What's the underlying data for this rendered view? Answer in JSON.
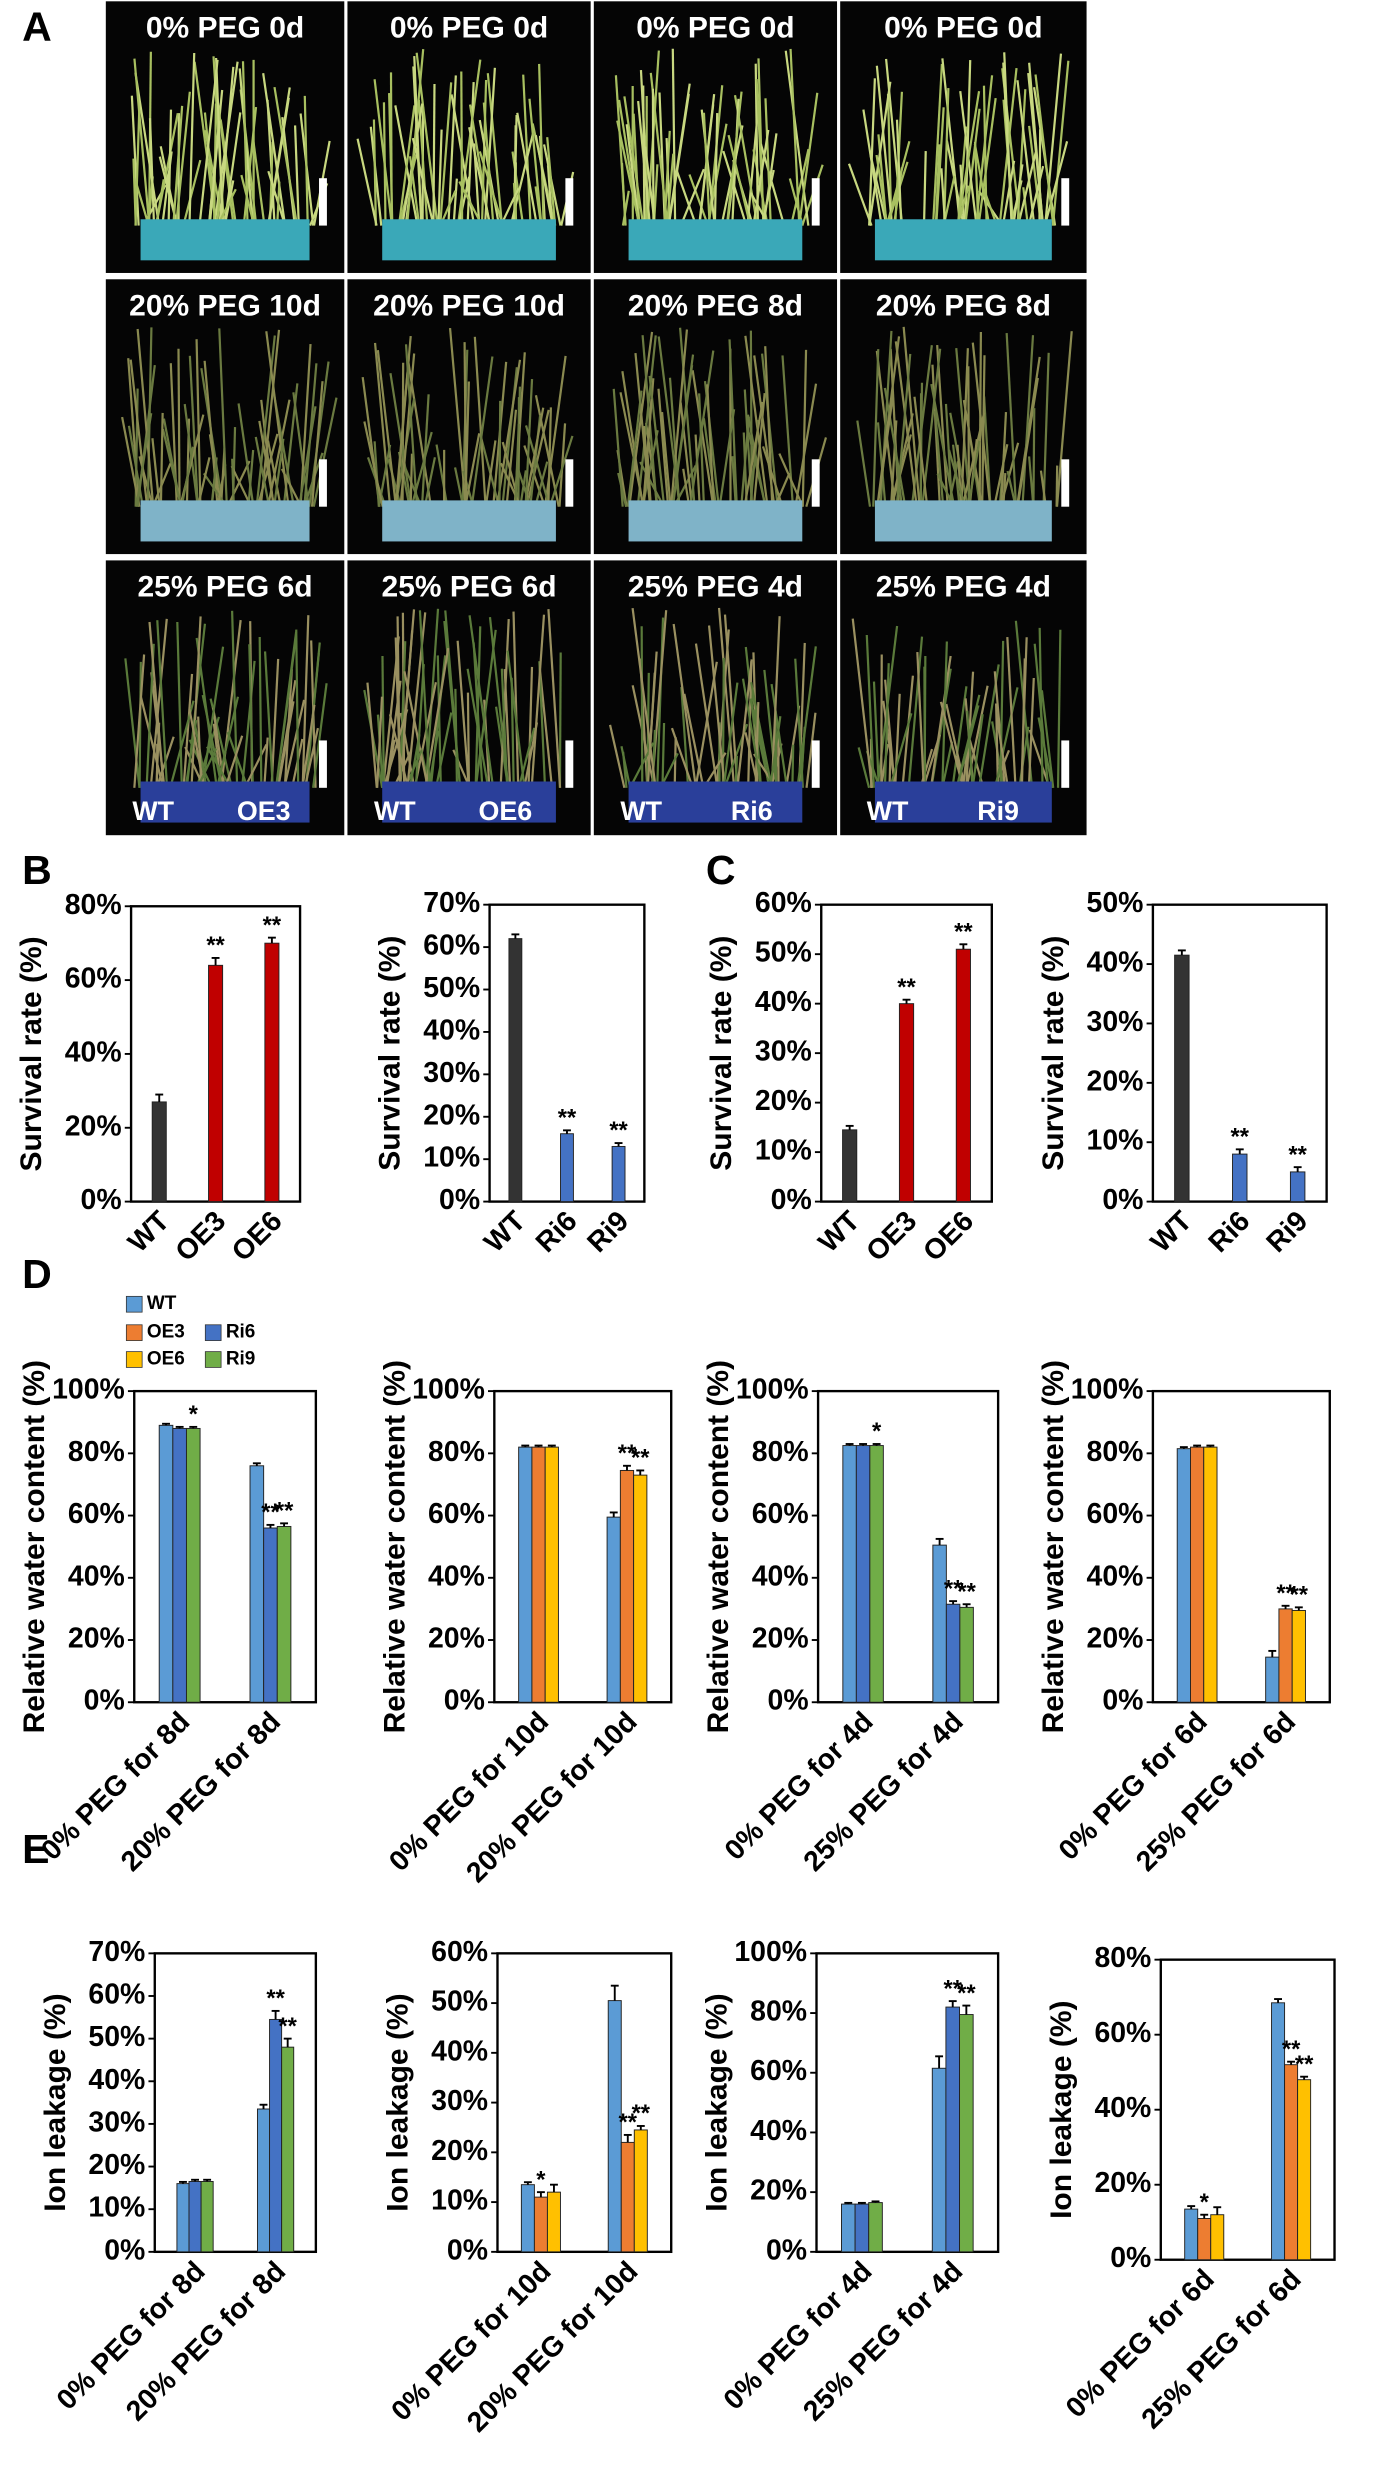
{
  "panel_labels": [
    "A",
    "B",
    "C",
    "D",
    "E"
  ],
  "photos": {
    "tiles": [
      "0% PEG 0d",
      "0% PEG 0d",
      "0% PEG 0d",
      "0% PEG 0d",
      "20% PEG 10d",
      "20% PEG 10d",
      "20% PEG 8d",
      "20% PEG 8d",
      "25% PEG 6d",
      "25% PEG 6d",
      "25% PEG 4d",
      "25% PEG 4d"
    ],
    "genotypes": [
      [
        "WT",
        "OE3"
      ],
      [
        "WT",
        "OE6"
      ],
      [
        "WT",
        "Ri6"
      ],
      [
        "WT",
        "Ri9"
      ]
    ]
  },
  "legend": {
    "items": [
      {
        "name": "WT",
        "color": "#5b9bd5"
      },
      {
        "name": "OE3",
        "color": "#ed7d31"
      },
      {
        "name": "Ri6",
        "color": "#4472c4"
      },
      {
        "name": "OE6",
        "color": "#ffc000"
      },
      {
        "name": "Ri9",
        "color": "#70ad47"
      }
    ]
  },
  "chart_data": [
    {
      "type": "bar",
      "ylabel": "Survival rate (%)",
      "categories": [
        "WT",
        "OE3",
        "OE6"
      ],
      "values": [
        27,
        64,
        70
      ],
      "errors": [
        2,
        2,
        1.5
      ],
      "colors": [
        "#333333",
        "#c00000",
        "#c00000"
      ],
      "value_annotations": [
        null,
        "**",
        "**"
      ],
      "ylim": [
        0,
        80
      ],
      "yticks": [
        {
          "value": 0,
          "label": "0%"
        },
        {
          "value": 20,
          "label": "20%"
        },
        {
          "value": 40,
          "label": "40%"
        },
        {
          "value": 60,
          "label": "60%"
        },
        {
          "value": 80,
          "label": "80%"
        }
      ]
    },
    {
      "type": "bar",
      "ylabel": "Survival rate (%)",
      "categories": [
        "WT",
        "Ri6",
        "Ri9"
      ],
      "values": [
        62,
        16,
        13
      ],
      "errors": [
        1,
        0.8,
        0.8
      ],
      "colors": [
        "#333333",
        "#4472c4",
        "#4472c4"
      ],
      "value_annotations": [
        null,
        "**",
        "**"
      ],
      "ylim": [
        0,
        70
      ],
      "yticks": [
        {
          "value": 0,
          "label": "0%"
        },
        {
          "value": 10,
          "label": "10%"
        },
        {
          "value": 20,
          "label": "20%"
        },
        {
          "value": 30,
          "label": "30%"
        },
        {
          "value": 40,
          "label": "40%"
        },
        {
          "value": 50,
          "label": "50%"
        },
        {
          "value": 60,
          "label": "60%"
        },
        {
          "value": 70,
          "label": "70%"
        }
      ]
    },
    {
      "type": "bar",
      "ylabel": "Survival rate (%)",
      "categories": [
        "WT",
        "OE3",
        "OE6"
      ],
      "values": [
        14.5,
        40,
        51
      ],
      "errors": [
        0.8,
        0.8,
        1
      ],
      "colors": [
        "#333333",
        "#c00000",
        "#c00000"
      ],
      "value_annotations": [
        null,
        "**",
        "**"
      ],
      "ylim": [
        0,
        60
      ],
      "yticks": [
        {
          "value": 0,
          "label": "0%"
        },
        {
          "value": 10,
          "label": "10%"
        },
        {
          "value": 20,
          "label": "20%"
        },
        {
          "value": 30,
          "label": "30%"
        },
        {
          "value": 40,
          "label": "40%"
        },
        {
          "value": 50,
          "label": "50%"
        },
        {
          "value": 60,
          "label": "60%"
        }
      ]
    },
    {
      "type": "bar",
      "ylabel": "Survival rate (%)",
      "categories": [
        "WT",
        "Ri6",
        "Ri9"
      ],
      "values": [
        41.5,
        8,
        5
      ],
      "errors": [
        0.8,
        0.8,
        0.8
      ],
      "colors": [
        "#333333",
        "#4472c4",
        "#4472c4"
      ],
      "value_annotations": [
        null,
        "**",
        "**"
      ],
      "ylim": [
        0,
        50
      ],
      "yticks": [
        {
          "value": 0,
          "label": "0%"
        },
        {
          "value": 10,
          "label": "10%"
        },
        {
          "value": 20,
          "label": "20%"
        },
        {
          "value": 30,
          "label": "30%"
        },
        {
          "value": 40,
          "label": "40%"
        },
        {
          "value": 50,
          "label": "50%"
        }
      ]
    },
    {
      "type": "bar",
      "ylabel": "Relative water content (%)",
      "categories": [
        "0% PEG for 8d",
        "20% PEG for 8d"
      ],
      "series": [
        {
          "name": "WT",
          "color": "#5b9bd5",
          "values": [
            89,
            76
          ],
          "errors": [
            0.5,
            0.8
          ],
          "value_annotations": [
            null,
            null
          ]
        },
        {
          "name": "Ri6",
          "color": "#4472c4",
          "values": [
            88,
            56
          ],
          "errors": [
            0.5,
            1
          ],
          "value_annotations": [
            null,
            "**"
          ]
        },
        {
          "name": "Ri9",
          "color": "#70ad47",
          "values": [
            88,
            56.5
          ],
          "errors": [
            0.5,
            1
          ],
          "value_annotations": [
            "*",
            "**"
          ]
        }
      ],
      "ylim": [
        0,
        100
      ],
      "yticks": [
        {
          "value": 0,
          "label": "0%"
        },
        {
          "value": 20,
          "label": "20%"
        },
        {
          "value": 40,
          "label": "40%"
        },
        {
          "value": 60,
          "label": "60%"
        },
        {
          "value": 80,
          "label": "80%"
        },
        {
          "value": 100,
          "label": "100%"
        }
      ]
    },
    {
      "type": "bar",
      "ylabel": "Relative water content (%)",
      "categories": [
        "0% PEG for 10d",
        "20% PEG for 10d"
      ],
      "series": [
        {
          "name": "WT",
          "color": "#5b9bd5",
          "values": [
            82,
            59.5
          ],
          "errors": [
            0.5,
            1.5
          ],
          "value_annotations": [
            null,
            null
          ]
        },
        {
          "name": "OE3",
          "color": "#ed7d31",
          "values": [
            82,
            74.5
          ],
          "errors": [
            0.5,
            1.5
          ],
          "value_annotations": [
            null,
            "**"
          ]
        },
        {
          "name": "OE6",
          "color": "#ffc000",
          "values": [
            82,
            73
          ],
          "errors": [
            0.5,
            1.5
          ],
          "value_annotations": [
            null,
            "**"
          ]
        }
      ],
      "ylim": [
        0,
        100
      ],
      "yticks": [
        {
          "value": 0,
          "label": "0%"
        },
        {
          "value": 20,
          "label": "20%"
        },
        {
          "value": 40,
          "label": "40%"
        },
        {
          "value": 60,
          "label": "60%"
        },
        {
          "value": 80,
          "label": "80%"
        },
        {
          "value": 100,
          "label": "100%"
        }
      ]
    },
    {
      "type": "bar",
      "ylabel": "Relative water content (%)",
      "categories": [
        "0% PEG for 4d",
        "25% PEG for 4d"
      ],
      "series": [
        {
          "name": "WT",
          "color": "#5b9bd5",
          "values": [
            82.5,
            50.5
          ],
          "errors": [
            0.5,
            2
          ],
          "value_annotations": [
            null,
            null
          ]
        },
        {
          "name": "Ri6",
          "color": "#4472c4",
          "values": [
            82.5,
            31.5
          ],
          "errors": [
            0.5,
            1
          ],
          "value_annotations": [
            null,
            "**"
          ]
        },
        {
          "name": "Ri9",
          "color": "#70ad47",
          "values": [
            82.5,
            30.5
          ],
          "errors": [
            0.5,
            1
          ],
          "value_annotations": [
            "*",
            "**"
          ]
        }
      ],
      "ylim": [
        0,
        100
      ],
      "yticks": [
        {
          "value": 0,
          "label": "0%"
        },
        {
          "value": 20,
          "label": "20%"
        },
        {
          "value": 40,
          "label": "40%"
        },
        {
          "value": 60,
          "label": "60%"
        },
        {
          "value": 80,
          "label": "80%"
        },
        {
          "value": 100,
          "label": "100%"
        }
      ]
    },
    {
      "type": "bar",
      "ylabel": "Relative water content (%)",
      "categories": [
        "0% PEG for 6d",
        "25% PEG for 6d"
      ],
      "series": [
        {
          "name": "WT",
          "color": "#5b9bd5",
          "values": [
            81.5,
            14.5
          ],
          "errors": [
            0.5,
            2
          ],
          "value_annotations": [
            null,
            null
          ]
        },
        {
          "name": "OE3",
          "color": "#ed7d31",
          "values": [
            82,
            30
          ],
          "errors": [
            0.5,
            1
          ],
          "value_annotations": [
            null,
            "**"
          ]
        },
        {
          "name": "OE6",
          "color": "#ffc000",
          "values": [
            82,
            29.5
          ],
          "errors": [
            0.5,
            1
          ],
          "value_annotations": [
            null,
            "**"
          ]
        }
      ],
      "ylim": [
        0,
        100
      ],
      "yticks": [
        {
          "value": 0,
          "label": "0%"
        },
        {
          "value": 20,
          "label": "20%"
        },
        {
          "value": 40,
          "label": "40%"
        },
        {
          "value": 60,
          "label": "60%"
        },
        {
          "value": 80,
          "label": "80%"
        },
        {
          "value": 100,
          "label": "100%"
        }
      ]
    },
    {
      "type": "bar",
      "ylabel": "Ion leakage (%)",
      "categories": [
        "0% PEG for 8d",
        "20% PEG for 8d"
      ],
      "series": [
        {
          "name": "WT",
          "color": "#5b9bd5",
          "values": [
            16,
            33.5
          ],
          "errors": [
            0.4,
            1
          ],
          "value_annotations": [
            null,
            null
          ]
        },
        {
          "name": "Ri6",
          "color": "#4472c4",
          "values": [
            16.5,
            54.5
          ],
          "errors": [
            0.4,
            2
          ],
          "value_annotations": [
            null,
            "**"
          ]
        },
        {
          "name": "Ri9",
          "color": "#70ad47",
          "values": [
            16.5,
            48
          ],
          "errors": [
            0.4,
            2
          ],
          "value_annotations": [
            null,
            "**"
          ]
        }
      ],
      "ylim": [
        0,
        70
      ],
      "yticks": [
        {
          "value": 0,
          "label": "0%"
        },
        {
          "value": 10,
          "label": "10%"
        },
        {
          "value": 20,
          "label": "20%"
        },
        {
          "value": 30,
          "label": "30%"
        },
        {
          "value": 40,
          "label": "40%"
        },
        {
          "value": 50,
          "label": "50%"
        },
        {
          "value": 60,
          "label": "60%"
        },
        {
          "value": 70,
          "label": "70%"
        }
      ]
    },
    {
      "type": "bar",
      "ylabel": "Ion leakage (%)",
      "categories": [
        "0% PEG for 10d",
        "20% PEG for 10d"
      ],
      "series": [
        {
          "name": "WT",
          "color": "#5b9bd5",
          "values": [
            13.5,
            50.5
          ],
          "errors": [
            0.5,
            3
          ],
          "value_annotations": [
            null,
            null
          ]
        },
        {
          "name": "OE3",
          "color": "#ed7d31",
          "values": [
            11,
            22
          ],
          "errors": [
            1,
            1.5
          ],
          "value_annotations": [
            "*",
            "**"
          ]
        },
        {
          "name": "OE6",
          "color": "#ffc000",
          "values": [
            12,
            24.5
          ],
          "errors": [
            1.5,
            0.8
          ],
          "value_annotations": [
            null,
            "**"
          ]
        }
      ],
      "ylim": [
        0,
        60
      ],
      "yticks": [
        {
          "value": 0,
          "label": "0%"
        },
        {
          "value": 10,
          "label": "10%"
        },
        {
          "value": 20,
          "label": "20%"
        },
        {
          "value": 30,
          "label": "30%"
        },
        {
          "value": 40,
          "label": "40%"
        },
        {
          "value": 50,
          "label": "50%"
        },
        {
          "value": 60,
          "label": "60%"
        }
      ]
    },
    {
      "type": "bar",
      "ylabel": "Ion leakage (%)",
      "categories": [
        "0% PEG for 4d",
        "25% PEG for 4d"
      ],
      "series": [
        {
          "name": "WT",
          "color": "#5b9bd5",
          "values": [
            16,
            61.5
          ],
          "errors": [
            0.4,
            4
          ],
          "value_annotations": [
            null,
            null
          ]
        },
        {
          "name": "Ri6",
          "color": "#4472c4",
          "values": [
            16,
            82
          ],
          "errors": [
            0.4,
            2
          ],
          "value_annotations": [
            null,
            "**"
          ]
        },
        {
          "name": "Ri9",
          "color": "#70ad47",
          "values": [
            16.5,
            79.5
          ],
          "errors": [
            0.4,
            3
          ],
          "value_annotations": [
            null,
            "**"
          ]
        }
      ],
      "ylim": [
        0,
        100
      ],
      "yticks": [
        {
          "value": 0,
          "label": "0%"
        },
        {
          "value": 20,
          "label": "20%"
        },
        {
          "value": 40,
          "label": "40%"
        },
        {
          "value": 60,
          "label": "60%"
        },
        {
          "value": 80,
          "label": "80%"
        },
        {
          "value": 100,
          "label": "100%"
        }
      ]
    },
    {
      "type": "bar",
      "ylabel": "Ion leakage (%)",
      "categories": [
        "0% PEG for 6d",
        "25% PEG for 6d"
      ],
      "series": [
        {
          "name": "WT",
          "color": "#5b9bd5",
          "values": [
            13.5,
            68.5
          ],
          "errors": [
            0.8,
            1
          ],
          "value_annotations": [
            null,
            null
          ]
        },
        {
          "name": "OE3",
          "color": "#ed7d31",
          "values": [
            11,
            52
          ],
          "errors": [
            1,
            0.8
          ],
          "value_annotations": [
            "*",
            "**"
          ]
        },
        {
          "name": "OE6",
          "color": "#ffc000",
          "values": [
            12,
            48
          ],
          "errors": [
            2,
            0.8
          ],
          "value_annotations": [
            null,
            "**"
          ]
        }
      ],
      "ylim": [
        0,
        80
      ],
      "yticks": [
        {
          "value": 0,
          "label": "0%"
        },
        {
          "value": 20,
          "label": "20%"
        },
        {
          "value": 40,
          "label": "40%"
        },
        {
          "value": 60,
          "label": "60%"
        },
        {
          "value": 80,
          "label": "80%"
        }
      ]
    }
  ]
}
